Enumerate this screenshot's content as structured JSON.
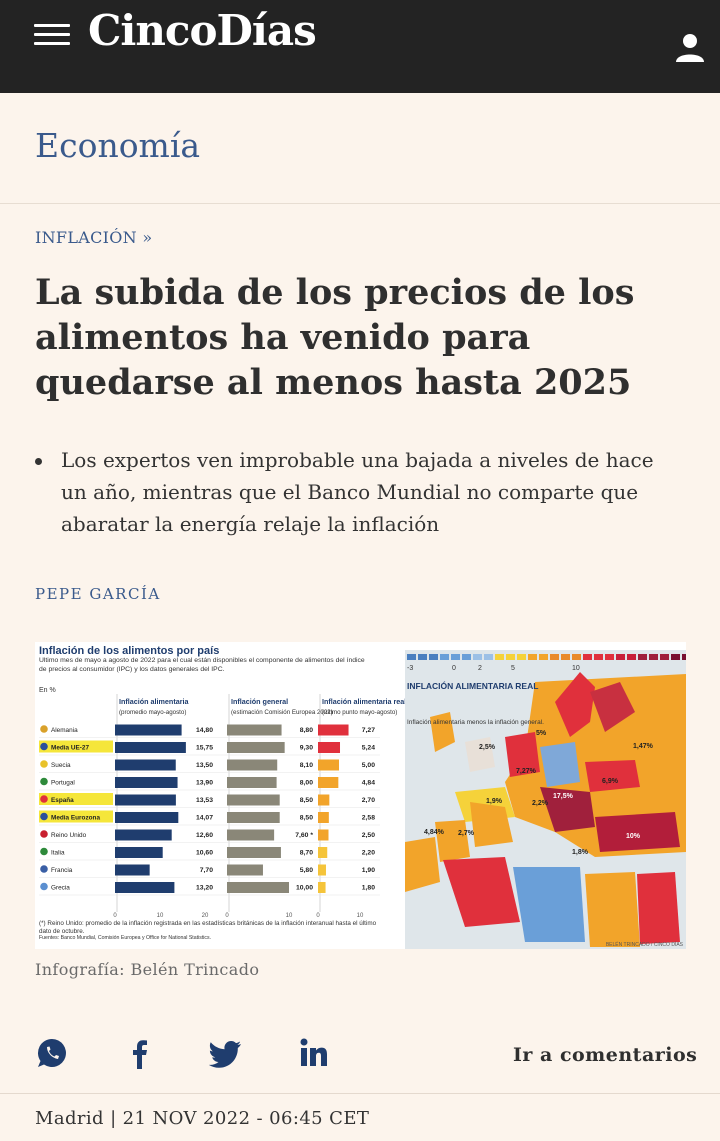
{
  "header": {
    "logo": "CincoDías"
  },
  "section": {
    "title": "Economía"
  },
  "article": {
    "kicker": "INFLACIÓN »",
    "headline": "La subida de los precios de los alimentos ha venido para quedarse al menos hasta 2025",
    "summary": "Los expertos ven improbable una bajada a niveles de hace un año, mientras que el Banco Mundial no comparte que abaratar la energía relaje la inflación",
    "author": "PEPE GARCÍA",
    "image_caption": "Infografía: Belén Trincado",
    "comments_label": "Ir a comentarios",
    "dateline": "Madrid | 21 NOV 2022 - 06:45 CET"
  },
  "chart_data": {
    "type": "bar",
    "title": "Inflación de los alimentos por país",
    "subtitle": "Último mes de mayo a agosto de 2022 para el cual están disponibles el componente de alimentos del índice de precios al consumidor (IPC) y los datos generales del IPC.",
    "unit_note": "En %",
    "categories": [
      "Alemania",
      "Media UE-27",
      "Suecia",
      "Portugal",
      "España",
      "Media Eurozona",
      "Reino Unido",
      "Italia",
      "Francia",
      "Grecia"
    ],
    "highlighted": [
      "Media UE-27",
      "España",
      "Media Eurozona"
    ],
    "series": [
      {
        "name": "Inflación alimentaria",
        "subname": "(promedio mayo-agosto)",
        "labels": [
          "14,80",
          "15,75",
          "13,50",
          "13,90",
          "13,53",
          "14,07",
          "12,60",
          "10,60",
          "7,70",
          "13,20"
        ],
        "values": [
          14.8,
          15.75,
          13.5,
          13.9,
          13.53,
          14.07,
          12.6,
          10.6,
          7.7,
          13.2
        ],
        "color": "#1f3d6e",
        "xlim": [
          0,
          20
        ],
        "ticks": [
          "0",
          "10",
          "20"
        ]
      },
      {
        "name": "Inflación general",
        "subname": "(estimación Comisión Europea 2022)",
        "labels": [
          "8,80",
          "9,30",
          "8,10",
          "8,00",
          "8,50",
          "8,50",
          "7,60 *",
          "8,70",
          "5,80",
          "10,00"
        ],
        "values": [
          8.8,
          9.3,
          8.1,
          8.0,
          8.5,
          8.5,
          7.6,
          8.7,
          5.8,
          10.0
        ],
        "color": "#8a8778",
        "xlim": [
          0,
          10
        ],
        "ticks": [
          "0",
          "10"
        ]
      },
      {
        "name": "Inflación alimentaria real",
        "subname": "(último punto mayo-agosto)",
        "labels": [
          "7,27",
          "5,24",
          "5,00",
          "4,84",
          "2,70",
          "2,58",
          "2,50",
          "2,20",
          "1,90",
          "1,80"
        ],
        "values": [
          7.27,
          5.24,
          5.0,
          4.84,
          2.7,
          2.58,
          2.5,
          2.2,
          1.9,
          1.8
        ],
        "color": "#e0303c",
        "xlim": [
          0,
          10
        ],
        "ticks": [
          "0",
          "10"
        ]
      }
    ],
    "footnote": "(*) Reino Unido: promedio de la inflación registrada en las estadísticas británicas de la inflación interanual hasta el último dato de octubre.",
    "source": "Fuentes: Banco Mundial, Comisión Europea y Office for National Statistics.",
    "map": {
      "title": "INFLACIÓN ALIMENTARIA REAL",
      "description": "Inflación alimentaria menos la inflación general.",
      "scale_ticks": [
        "-3",
        "0",
        "2",
        "5",
        "10"
      ],
      "labels": [
        "1,47%",
        "5%",
        "2,5%",
        "7,27%",
        "6,9%",
        "17,5%",
        "1,9%",
        "2,2%",
        "4,84%",
        "2,7%",
        "1,8%",
        "10%"
      ],
      "credit": "BELÉN TRINCADO / CINCO DÍAS"
    }
  }
}
